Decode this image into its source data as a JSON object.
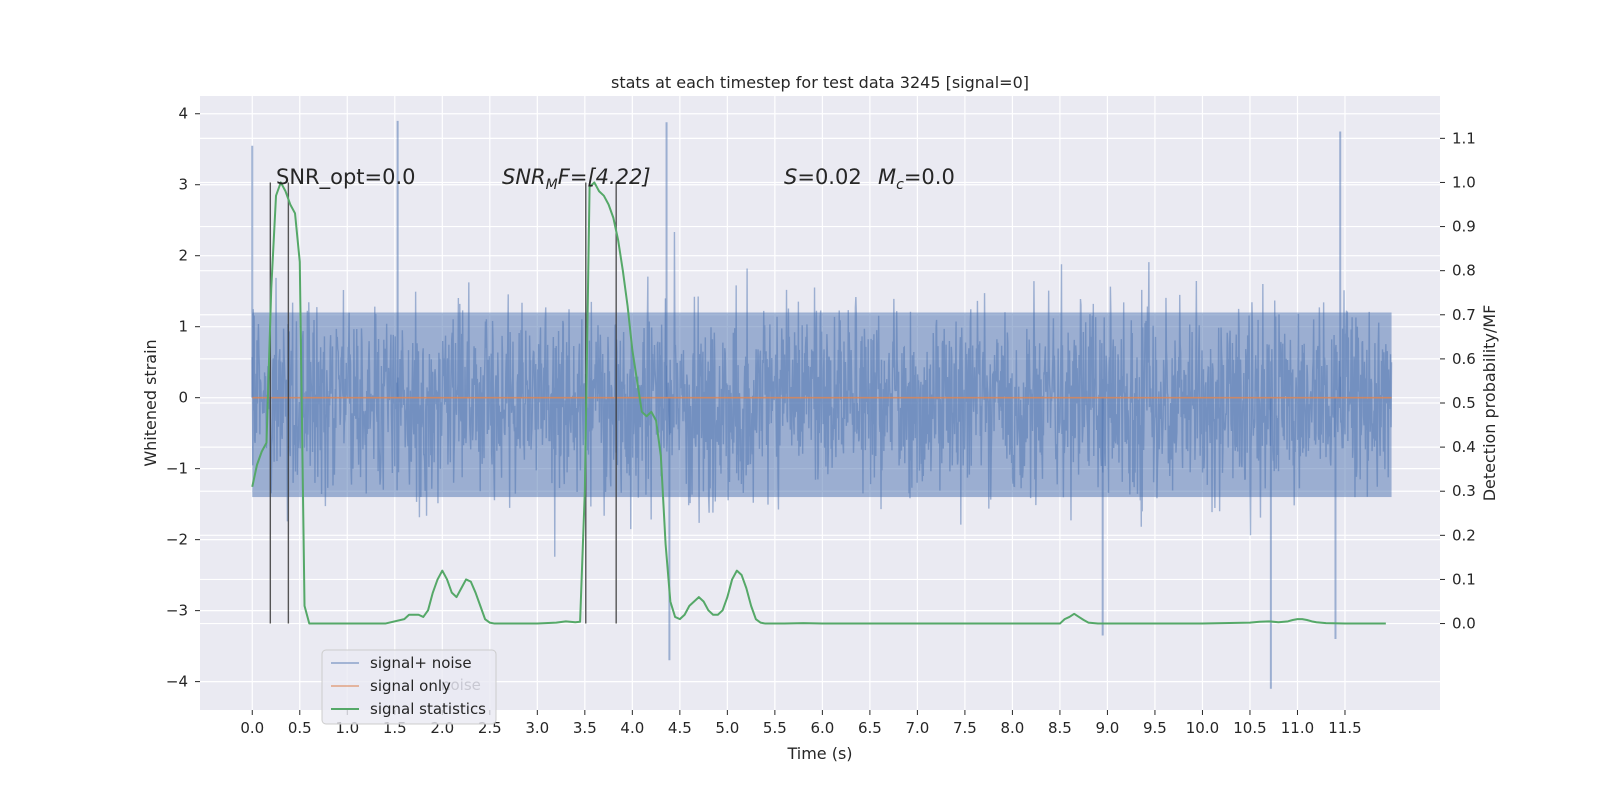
{
  "chart_data": {
    "type": "line",
    "title": "stats at each timestep for test data 3245 [signal=0]",
    "xlabel": "Time (s)",
    "ylabel": "Whitened strain",
    "ylabel_right": "Detection probability/MF",
    "xlim": [
      -0.55,
      12.5
    ],
    "ylim": [
      -4.4,
      4.25
    ],
    "ylim_right": [
      -0.196,
      1.196
    ],
    "x_ticks": [
      "0.0",
      "0.5",
      "1.0",
      "1.5",
      "2.0",
      "2.5",
      "3.0",
      "3.5",
      "4.0",
      "4.5",
      "5.0",
      "5.5",
      "6.0",
      "6.5",
      "7.0",
      "7.5",
      "8.0",
      "8.5",
      "9.0",
      "9.5",
      "10.0",
      "10.5",
      "11.0",
      "11.5"
    ],
    "y_ticks": [
      "4",
      "3",
      "2",
      "1",
      "0",
      "−1",
      "−2",
      "−3",
      "−4"
    ],
    "y_ticks_right": [
      "1.1",
      "1.0",
      "0.9",
      "0.8",
      "0.7",
      "0.6",
      "0.5",
      "0.4",
      "0.3",
      "0.2",
      "0.1",
      "0.0"
    ],
    "grid": true,
    "background": "#eaeaf2",
    "annotations": {
      "snr_opt": "SNR_opt=0.0",
      "snr_mf_base": "SNR",
      "snr_mf_sub": "M",
      "snr_mf_rest": "F=[4.22]",
      "s_label": "S",
      "s_value": "=0.02",
      "mc_base": "M",
      "mc_sub": "c",
      "mc_value": "=0.0"
    },
    "legend": {
      "placement": "lower-left",
      "entries": [
        {
          "label": "signal+ noise",
          "color": "#4c72b0"
        },
        {
          "label": "signal only",
          "color": "#dd8452"
        },
        {
          "label": "signal statistics",
          "color": "#55a868"
        }
      ],
      "hidden_label": "noise"
    },
    "series": [
      {
        "name": "signal+ noise",
        "axis": "left",
        "color": "#4c72b0",
        "alpha": 0.5,
        "x_range": [
          0.0,
          11.99
        ],
        "band_typical": [
          -1.4,
          1.2
        ],
        "band_extreme": [
          -4.1,
          3.9
        ],
        "notable_peaks": [
          {
            "x": 0.0,
            "y": 3.55
          },
          {
            "x": 1.53,
            "y": 3.9
          },
          {
            "x": 4.36,
            "y": 3.88
          },
          {
            "x": 4.39,
            "y": -3.7
          },
          {
            "x": 10.72,
            "y": -4.1
          },
          {
            "x": 11.45,
            "y": 3.75
          },
          {
            "x": 11.4,
            "y": -3.4
          },
          {
            "x": 8.95,
            "y": -3.35
          }
        ]
      },
      {
        "name": "signal only",
        "axis": "left",
        "color": "#dd8452",
        "x": [
          0.0,
          11.99
        ],
        "y": [
          0.0,
          0.0
        ]
      },
      {
        "name": "signal statistics",
        "axis": "right",
        "color": "#55a868",
        "x": [
          0.0,
          0.05,
          0.1,
          0.15,
          0.2,
          0.25,
          0.3,
          0.35,
          0.4,
          0.45,
          0.5,
          0.55,
          0.6,
          0.65,
          0.7,
          0.8,
          1.0,
          1.2,
          1.4,
          1.6,
          1.65,
          1.7,
          1.75,
          1.8,
          1.85,
          1.9,
          1.95,
          2.0,
          2.05,
          2.1,
          2.15,
          2.2,
          2.25,
          2.3,
          2.35,
          2.4,
          2.45,
          2.5,
          2.55,
          2.6,
          2.8,
          3.0,
          3.2,
          3.3,
          3.4,
          3.45,
          3.5,
          3.55,
          3.6,
          3.65,
          3.7,
          3.75,
          3.8,
          3.85,
          3.9,
          3.95,
          4.0,
          4.05,
          4.1,
          4.15,
          4.2,
          4.25,
          4.3,
          4.35,
          4.4,
          4.45,
          4.5,
          4.55,
          4.6,
          4.65,
          4.7,
          4.75,
          4.8,
          4.85,
          4.9,
          4.95,
          5.0,
          5.05,
          5.1,
          5.15,
          5.2,
          5.25,
          5.3,
          5.35,
          5.4,
          5.45,
          5.5,
          5.6,
          5.8,
          6.0,
          6.5,
          7.0,
          7.5,
          8.0,
          8.5,
          8.55,
          8.6,
          8.65,
          8.7,
          8.75,
          8.8,
          8.9,
          9.0,
          9.5,
          10.0,
          10.5,
          10.6,
          10.7,
          10.8,
          10.9,
          10.95,
          11.0,
          11.05,
          11.1,
          11.15,
          11.2,
          11.3,
          11.5,
          11.8,
          11.93
        ],
        "y": [
          0.31,
          0.36,
          0.39,
          0.41,
          0.76,
          0.97,
          1.0,
          0.98,
          0.95,
          0.93,
          0.82,
          0.04,
          0.0,
          0.0,
          0.0,
          0.0,
          0.0,
          0.0,
          0.0,
          0.01,
          0.02,
          0.02,
          0.02,
          0.015,
          0.03,
          0.07,
          0.1,
          0.12,
          0.1,
          0.07,
          0.06,
          0.08,
          0.1,
          0.095,
          0.07,
          0.04,
          0.01,
          0.002,
          0.0,
          0.0,
          0.0,
          0.0,
          0.002,
          0.005,
          0.003,
          0.004,
          0.3,
          0.99,
          1.0,
          0.98,
          0.97,
          0.95,
          0.92,
          0.87,
          0.8,
          0.72,
          0.62,
          0.55,
          0.48,
          0.47,
          0.48,
          0.46,
          0.38,
          0.18,
          0.05,
          0.015,
          0.01,
          0.02,
          0.04,
          0.05,
          0.06,
          0.05,
          0.03,
          0.02,
          0.02,
          0.03,
          0.06,
          0.1,
          0.12,
          0.11,
          0.08,
          0.04,
          0.01,
          0.002,
          0.0,
          0.0,
          0.0,
          0.0,
          0.001,
          0.0,
          0.0,
          0.0,
          0.0,
          0.0,
          0.0,
          0.01,
          0.015,
          0.022,
          0.015,
          0.008,
          0.002,
          0.0,
          0.0,
          0.0,
          0.0,
          0.002,
          0.004,
          0.005,
          0.003,
          0.005,
          0.008,
          0.01,
          0.01,
          0.008,
          0.005,
          0.003,
          0.001,
          0.0,
          0.0,
          0.0
        ]
      }
    ],
    "vertical_markers": [
      {
        "x": 0.19,
        "ymax_right": 1.0
      },
      {
        "x": 0.38,
        "ymax_right": 1.0
      },
      {
        "x": 3.51,
        "ymax_right": 1.0
      },
      {
        "x": 3.83,
        "ymax_right": 1.0
      }
    ]
  }
}
